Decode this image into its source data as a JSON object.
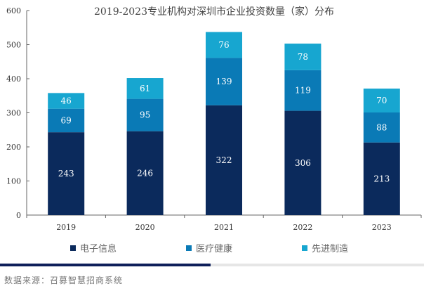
{
  "chart_data": {
    "type": "bar",
    "stacked": true,
    "title": "2019-2023专业机构对深圳市企业投资数量（家）分布",
    "xlabel": "",
    "ylabel": "",
    "categories": [
      "2019",
      "2020",
      "2021",
      "2022",
      "2023"
    ],
    "ylim": [
      0,
      600
    ],
    "yticks": [
      0,
      100,
      200,
      300,
      400,
      500,
      600
    ],
    "grid": false,
    "legend_position": "bottom",
    "series": [
      {
        "name": "电子信息",
        "color": "#0b2a5c",
        "values": [
          243,
          246,
          322,
          306,
          213
        ]
      },
      {
        "name": "医疗健康",
        "color": "#0a7ab6",
        "values": [
          69,
          95,
          139,
          119,
          88
        ]
      },
      {
        "name": "先进制造",
        "color": "#17a6d0",
        "values": [
          46,
          61,
          76,
          78,
          70
        ]
      }
    ]
  },
  "source": "数据来源：召募智慧招商系统"
}
